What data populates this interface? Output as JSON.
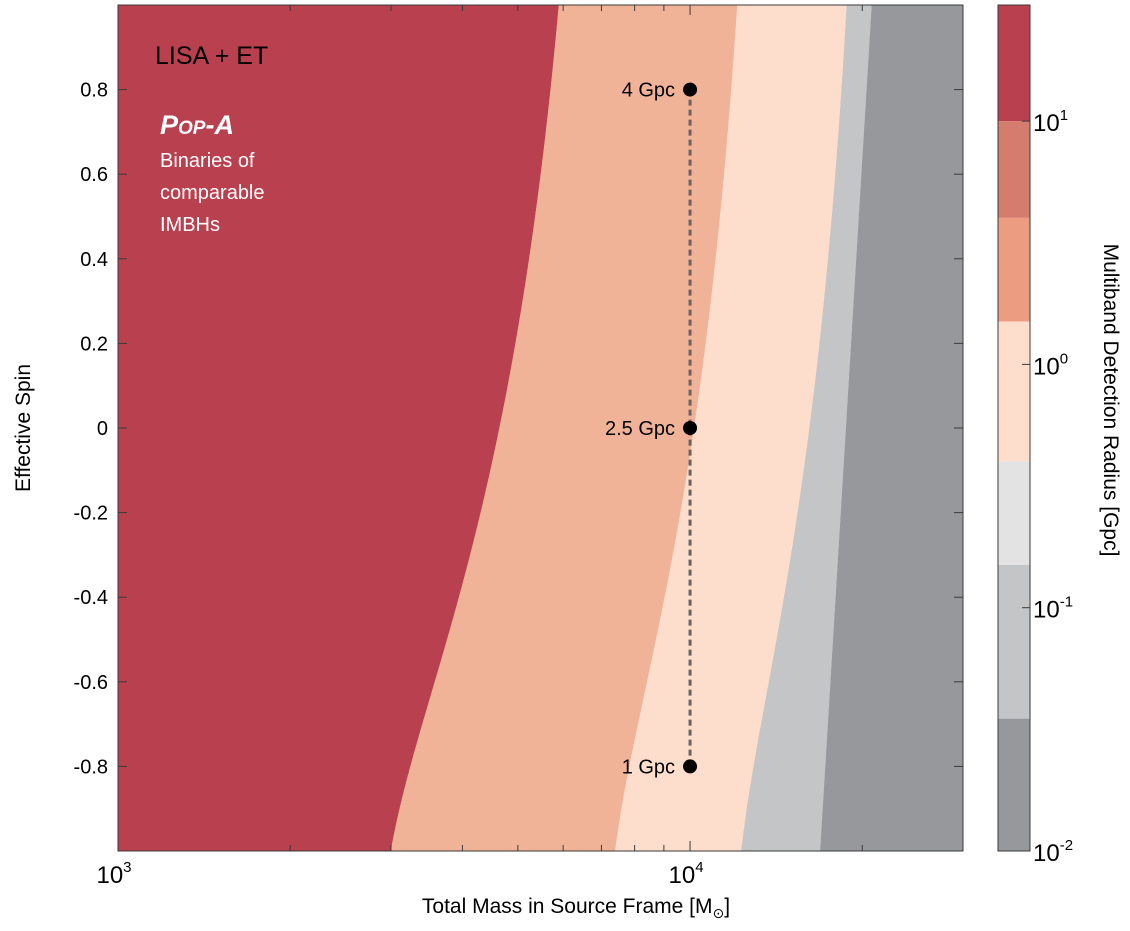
{
  "chart_data": {
    "type": "contour",
    "title": "",
    "xlabel": "Total Mass in Source Frame [M",
    "xlabel_sun": "⊙",
    "xlabel_close": "]",
    "ylabel": "Effective Spin",
    "x_scale": "log",
    "xlim": [
      1000,
      30000
    ],
    "ylim": [
      -1,
      1
    ],
    "x_ticks": [
      {
        "value": 1000,
        "base": "10",
        "exp": "3"
      },
      {
        "value": 10000,
        "base": "10",
        "exp": "4"
      }
    ],
    "y_ticks": [
      {
        "value": 0.8,
        "label": "0.8"
      },
      {
        "value": 0.6,
        "label": "0.6"
      },
      {
        "value": 0.4,
        "label": "0.4"
      },
      {
        "value": 0.2,
        "label": "0.2"
      },
      {
        "value": 0,
        "label": "0"
      },
      {
        "value": -0.2,
        "label": "-0.2"
      },
      {
        "value": -0.4,
        "label": "-0.4"
      },
      {
        "value": -0.6,
        "label": "-0.6"
      },
      {
        "value": -0.8,
        "label": "-0.8"
      }
    ],
    "grid": false,
    "annotation_title": "LISA + ET",
    "annotation_name": "Pop-A",
    "annotation_lines": [
      "Binaries of",
      "comparable",
      "IMBHs"
    ],
    "regions": [
      {
        "level": "> 10 Gpc",
        "color": "#B9404F",
        "boundary_top": 5900,
        "boundary_bottom": 3000
      },
      {
        "level": "2.5 – 4 Gpc",
        "color": "#F0B398",
        "boundary_top": 12100,
        "boundary_bottom": 7400
      },
      {
        "level": "0.6 – 1 Gpc",
        "color": "#FDDDCC",
        "boundary_top": 18800,
        "boundary_bottom": 12300
      },
      {
        "level": "0.1 – 0.2 Gpc",
        "color": "#C4C5C7",
        "boundary_top": 20800,
        "boundary_bottom": 16900
      },
      {
        "level": "< 0.1 Gpc",
        "color": "#96989C"
      }
    ],
    "markers": [
      {
        "x": 10000,
        "y": 0.8,
        "label": "4 Gpc"
      },
      {
        "x": 10000,
        "y": 0,
        "label": "2.5 Gpc"
      },
      {
        "x": 10000,
        "y": -0.8,
        "label": "1 Gpc"
      }
    ],
    "marker_connector": "dashed",
    "colorbar": {
      "label": "Multiband Detection Radius [Gpc]",
      "scale": "log",
      "range": [
        0.01,
        30
      ],
      "bands": [
        {
          "from": 10,
          "to": 30,
          "color": "#B9404F"
        },
        {
          "from": 4,
          "to": 10,
          "color": "#D47C6D"
        },
        {
          "from": 1.5,
          "to": 4,
          "color": "#EC9C80"
        },
        {
          "from": 0.4,
          "to": 1.5,
          "color": "#FDDDCC"
        },
        {
          "from": 0.15,
          "to": 0.4,
          "color": "#E3E3E4"
        },
        {
          "from": 0.035,
          "to": 0.15,
          "color": "#C4C5C7"
        },
        {
          "from": 0.01,
          "to": 0.035,
          "color": "#96989C"
        }
      ],
      "ticks": [
        {
          "value": 10,
          "base": "10",
          "exp": "1"
        },
        {
          "value": 1,
          "base": "10",
          "exp": "0"
        },
        {
          "value": 0.1,
          "base": "10",
          "exp": "-1"
        },
        {
          "value": 0.01,
          "base": "10",
          "exp": "-2"
        }
      ]
    }
  }
}
